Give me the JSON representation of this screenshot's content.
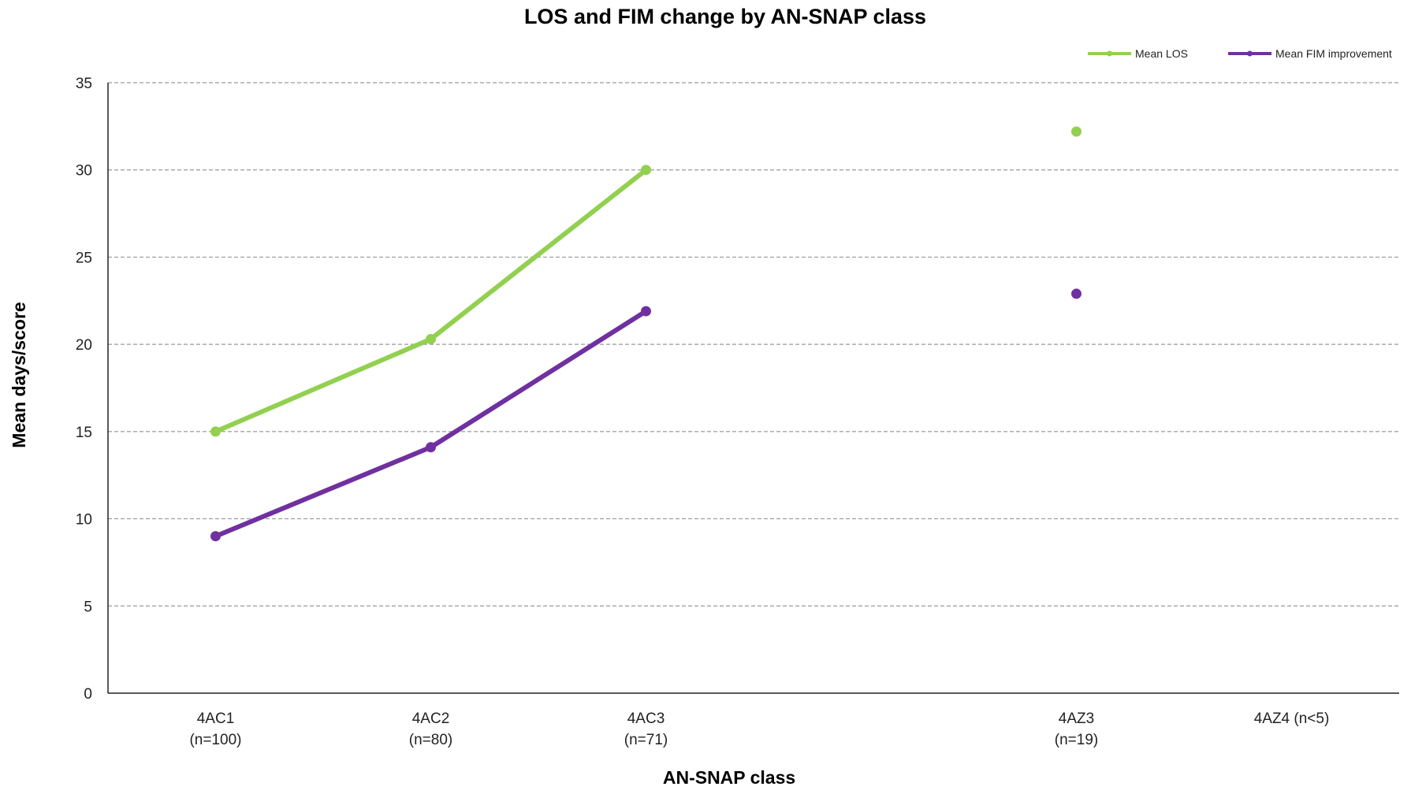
{
  "chart_data": {
    "type": "line",
    "title": "LOS and FIM change by AN-SNAP class",
    "xlabel": "AN-SNAP class",
    "ylabel": "Mean days/score",
    "ylim": [
      0,
      35
    ],
    "yticks": [
      "0",
      "5",
      "10",
      "15",
      "20",
      "25",
      "30",
      "35"
    ],
    "categories": [
      {
        "line1": "4AC1",
        "line2": "(n=100)"
      },
      {
        "line1": "4AC2",
        "line2": "(n=80)"
      },
      {
        "line1": "4AC3",
        "line2": "(n=71)"
      },
      {
        "line1": "4AZ3",
        "line2": "(n=19)"
      },
      {
        "line1": "4AZ4 (n<5)",
        "line2": ""
      }
    ],
    "category_positions": [
      0.5,
      1.5,
      2.5,
      4.5,
      5.5
    ],
    "x_range": [
      0,
      6
    ],
    "series": [
      {
        "name": "Mean LOS",
        "color": "#92d050",
        "values": [
          15.0,
          20.3,
          30.0,
          32.2,
          null
        ]
      },
      {
        "name": "Mean FIM improvement",
        "color": "#7030a0",
        "values": [
          9.0,
          14.1,
          21.9,
          22.9,
          null
        ]
      }
    ],
    "grid": true,
    "legend_position": "top-right"
  }
}
